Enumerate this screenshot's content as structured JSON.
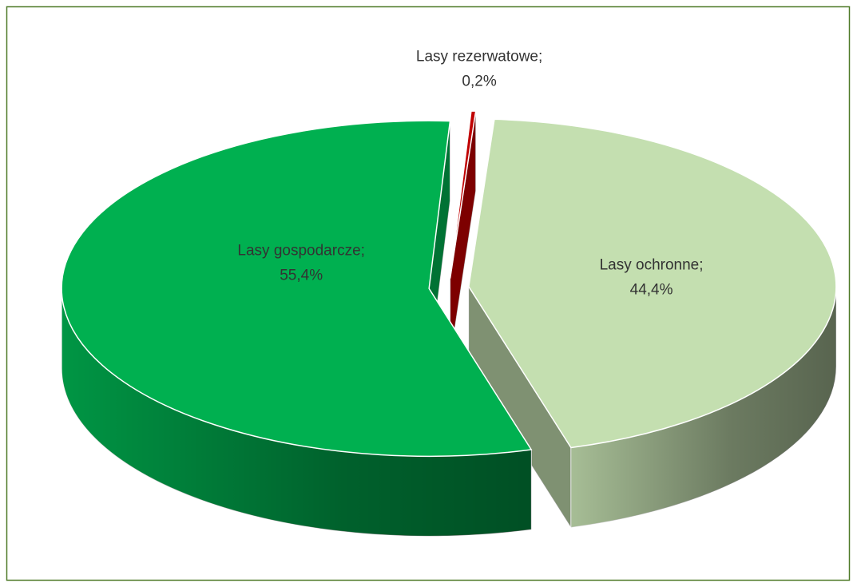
{
  "chart_data": {
    "type": "pie3d",
    "categories": [
      "Lasy ochronne;",
      "Lasy gospodarcze;",
      "Lasy rezerwatowe;"
    ],
    "values": [
      44.4,
      55.4,
      0.2
    ],
    "value_labels": [
      "44,4%",
      "55,4%",
      "0,2%"
    ],
    "colors": [
      "#c4dfb0",
      "#00b050",
      "#c00000"
    ]
  }
}
